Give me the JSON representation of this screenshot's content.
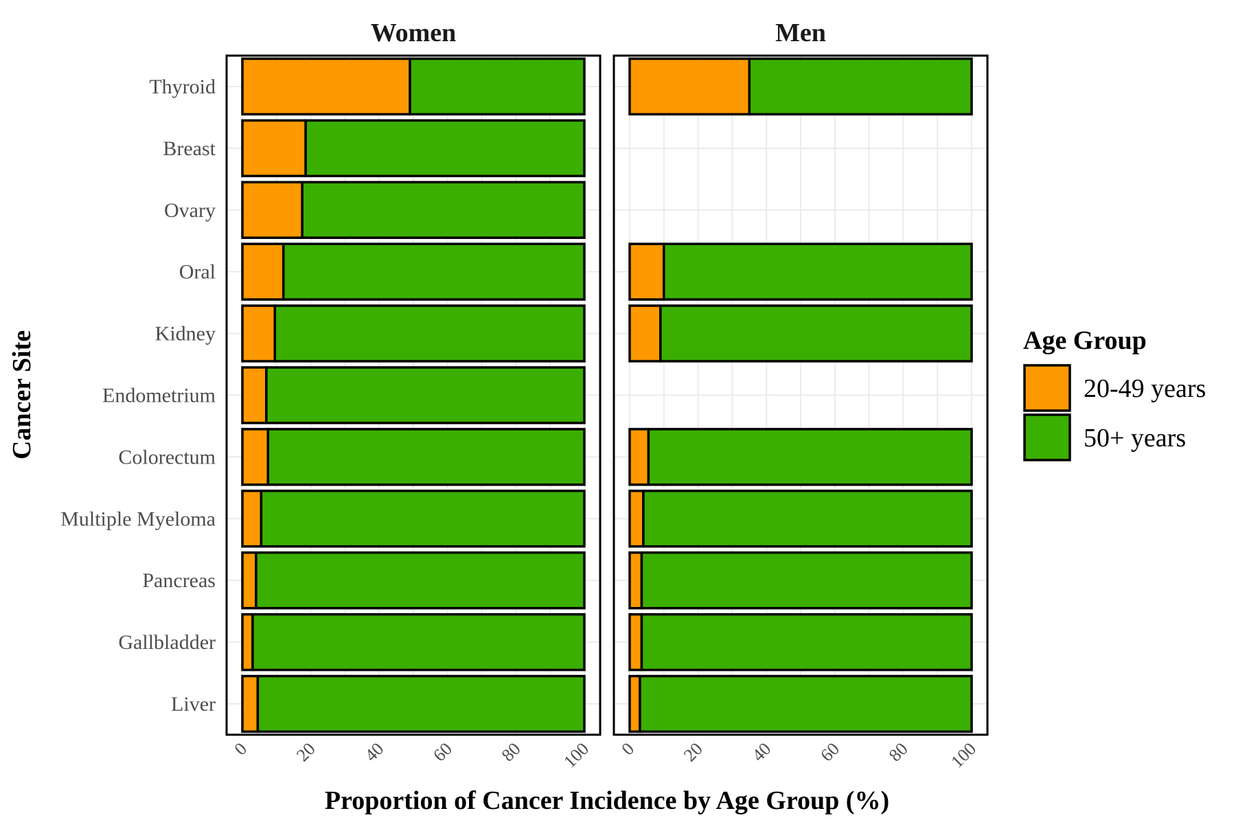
{
  "chart_data": {
    "type": "bar",
    "orientation": "horizontal",
    "stacked": true,
    "xlabel": "Proportion of Cancer Incidence by Age Group (%)",
    "ylabel": "Cancer Site",
    "xlim": [
      0,
      100
    ],
    "xticks": [
      "0",
      "20",
      "40",
      "60",
      "80",
      "100"
    ],
    "categories": [
      "Thyroid",
      "Breast",
      "Ovary",
      "Oral",
      "Kidney",
      "Endometrium",
      "Colorectum",
      "Multiple Myeloma",
      "Pancreas",
      "Gallbladder",
      "Liver"
    ],
    "legend": {
      "title": "Age Group",
      "position": "right",
      "entries": [
        {
          "label": "20-49 years",
          "color": "#FF9900"
        },
        {
          "label": "50+ years",
          "color": "#3AAF00"
        }
      ]
    },
    "panels": [
      {
        "title": "Women",
        "series": [
          {
            "name": "20-49 years",
            "values": [
              49,
              18.5,
              17.5,
              12,
              9.5,
              7,
              7.5,
              5.5,
              4,
              3,
              4.5
            ]
          },
          {
            "name": "50+ years",
            "values": [
              51,
              81.5,
              82.5,
              88,
              90.5,
              93,
              92.5,
              94.5,
              96,
              97,
              95.5
            ]
          }
        ]
      },
      {
        "title": "Men",
        "series": [
          {
            "name": "20-49 years",
            "values": [
              35,
              null,
              null,
              10,
              9,
              null,
              5.5,
              4,
              3.5,
              3.5,
              3
            ]
          },
          {
            "name": "50+ years",
            "values": [
              65,
              null,
              null,
              90,
              91,
              null,
              94.5,
              96,
              96.5,
              96.5,
              97
            ]
          }
        ]
      }
    ]
  }
}
